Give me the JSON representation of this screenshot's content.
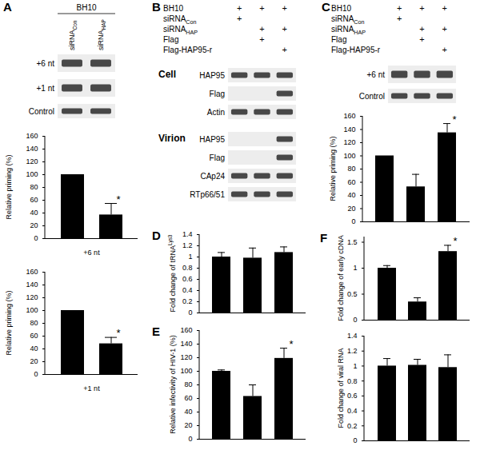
{
  "chart_data": [
    {
      "type": "bar",
      "y_label": "Relative priming (%)",
      "x_label": "+6 nt",
      "categories": [
        null,
        null
      ],
      "values": [
        100,
        37
      ],
      "errors": [
        0,
        18
      ],
      "annotations": [
        null,
        "*"
      ],
      "color": "#000000",
      "ylim": [
        0,
        160
      ],
      "yticks": [
        0,
        20,
        40,
        60,
        80,
        100,
        120,
        140,
        160
      ],
      "tick_labels": "y"
    },
    {
      "type": "bar",
      "y_label": "Relative priming (%)",
      "x_label": "+1 nt",
      "categories": [
        null,
        null
      ],
      "values": [
        100,
        48
      ],
      "errors": [
        0,
        10
      ],
      "annotations": [
        null,
        "*"
      ],
      "color": "#000000",
      "ylim": [
        0,
        160
      ],
      "yticks": [
        0,
        20,
        40,
        60,
        80,
        100,
        120,
        140,
        160
      ],
      "tick_labels": "y"
    },
    {
      "type": "bar",
      "y_label": "Relative priming (%)",
      "categories": [
        null,
        null,
        null
      ],
      "values": [
        100,
        53,
        135
      ],
      "errors": [
        0,
        19,
        14
      ],
      "annotations": [
        null,
        null,
        "*"
      ],
      "color": "#000000",
      "ylim": [
        0,
        160
      ],
      "yticks": [
        0,
        20,
        40,
        60,
        80,
        100,
        120,
        140,
        160
      ],
      "tick_labels": "y"
    },
    {
      "type": "bar",
      "y_label": {
        "text": "Fold change of tRNA",
        "sup": "Lys3"
      },
      "categories": [
        null,
        null,
        null
      ],
      "values": [
        1.0,
        0.98,
        1.08
      ],
      "errors": [
        0.08,
        0.18,
        0.1
      ],
      "color": "#000000",
      "ylim": [
        0,
        1.4
      ],
      "yticks": [
        0,
        0.2,
        0.4,
        0.6,
        0.8,
        1,
        1.2,
        1.4
      ],
      "tick_labels": "y"
    },
    {
      "type": "bar",
      "y_label": "Relative infectivity of HIV-1 (%)",
      "categories": [
        null,
        null,
        null
      ],
      "values": [
        100,
        63,
        119
      ],
      "errors": [
        2,
        17,
        15
      ],
      "annotations": [
        null,
        null,
        "*"
      ],
      "color": "#000000",
      "ylim": [
        0,
        160
      ],
      "yticks": [
        0,
        20,
        40,
        60,
        80,
        100,
        120,
        140,
        160
      ],
      "tick_labels": "y"
    },
    {
      "type": "bar",
      "y_label": "Fold change of early cDNA",
      "categories": [
        null,
        null,
        null
      ],
      "values": [
        1.0,
        0.35,
        1.32
      ],
      "errors": [
        0.05,
        0.08,
        0.12
      ],
      "annotations": [
        null,
        null,
        "*"
      ],
      "color": "#000000",
      "ylim": [
        0,
        1.6
      ],
      "yticks": [
        0,
        0.5,
        1,
        1.5
      ],
      "tick_labels": "y"
    },
    {
      "type": "bar",
      "y_label": "Fold change of viral RNA",
      "categories": [
        null,
        null,
        null
      ],
      "values": [
        1.0,
        1.01,
        0.98
      ],
      "errors": [
        0.1,
        0.08,
        0.17
      ],
      "color": "#000000",
      "ylim": [
        0,
        1.4
      ],
      "yticks": [
        0,
        0.2,
        0.4,
        0.6,
        0.8,
        1,
        1.2,
        1.4
      ],
      "tick_labels": "y"
    }
  ],
  "figure": {
    "A": {
      "letter": "A",
      "header": "BH10",
      "lanes": [
        {
          "text": "siRNA",
          "sub": "Con"
        },
        {
          "text": "siRNA",
          "sub": "HAP"
        }
      ],
      "blots": [
        {
          "label": "+6 nt",
          "bands": [
            true,
            true
          ]
        },
        {
          "label": "+1 nt",
          "bands": [
            true,
            true
          ]
        },
        {
          "label": "Control",
          "bands": [
            true,
            true
          ]
        }
      ]
    },
    "B": {
      "letter": "B",
      "conditions": {
        "symbol": "+",
        "rows": [
          {
            "text": "BH10",
            "marks": [
              true,
              true,
              true
            ]
          },
          {
            "text": "siRNA",
            "sub": "Con",
            "marks": [
              true,
              false,
              false
            ]
          },
          {
            "text": "siRNA",
            "sub": "HAP",
            "marks": [
              false,
              true,
              true
            ]
          },
          {
            "text": "Flag",
            "marks": [
              false,
              true,
              false
            ]
          },
          {
            "text": "Flag-HAP95-r",
            "marks": [
              false,
              false,
              true
            ]
          }
        ]
      },
      "sections": [
        {
          "title": "Cell",
          "blots": [
            {
              "label": "HAP95",
              "bands": [
                true,
                true,
                true
              ]
            },
            {
              "label": "Flag",
              "bands": [
                false,
                false,
                true
              ]
            },
            {
              "label": "Actin",
              "bands": [
                true,
                true,
                true
              ]
            }
          ]
        },
        {
          "title": "Virion",
          "blots": [
            {
              "label": "HAP95",
              "bands": [
                false,
                false,
                true
              ]
            },
            {
              "label": "Flag",
              "bands": [
                false,
                false,
                true
              ]
            },
            {
              "label": "CAp24",
              "bands": [
                true,
                true,
                true
              ]
            },
            {
              "label": "RTp66/51",
              "bands": [
                true,
                true,
                true
              ]
            }
          ]
        }
      ]
    },
    "C": {
      "letter": "C",
      "conditions": {
        "symbol": "+",
        "rows": [
          {
            "text": "BH10",
            "marks": [
              true,
              true,
              true
            ]
          },
          {
            "text": "siRNA",
            "sub": "Con",
            "marks": [
              true,
              false,
              false
            ]
          },
          {
            "text": "siRNA",
            "sub": "HAP",
            "marks": [
              false,
              true,
              true
            ]
          },
          {
            "text": "Flag",
            "marks": [
              false,
              true,
              false
            ]
          },
          {
            "text": "Flag-HAP95-r",
            "marks": [
              false,
              false,
              true
            ]
          }
        ]
      },
      "blots": [
        {
          "label": "+6 nt",
          "bands": [
            true,
            true,
            true
          ]
        },
        {
          "label": "Control",
          "bands": [
            true,
            true,
            true
          ]
        }
      ]
    },
    "D": {
      "letter": "D"
    },
    "E": {
      "letter": "E"
    },
    "F": {
      "letter": "F"
    }
  }
}
